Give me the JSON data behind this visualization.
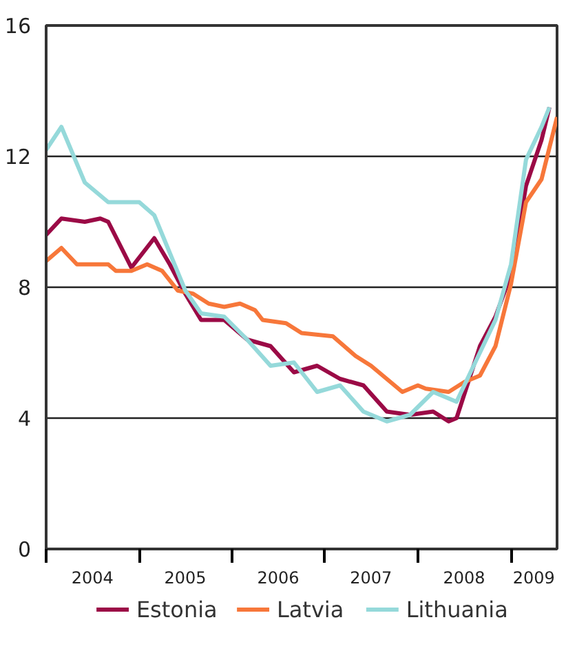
{
  "chart_data": {
    "type": "line",
    "legend": "bottom",
    "grid": "y",
    "line_style": "solid",
    "marker": "none",
    "xlim": [
      "2004-01",
      "2009-07"
    ],
    "xticks": [
      {
        "value": "2004-01",
        "label": null
      },
      {
        "value": "2005-01",
        "label": null
      },
      {
        "value": "2006-01",
        "label": null
      },
      {
        "value": "2007-01",
        "label": null
      },
      {
        "value": "2008-01",
        "label": null
      },
      {
        "value": "2009-01",
        "label": null
      },
      {
        "value": "2004-07",
        "label": "2004"
      },
      {
        "value": "2005-07",
        "label": "2005"
      },
      {
        "value": "2006-07",
        "label": "2006"
      },
      {
        "value": "2007-07",
        "label": "2007"
      },
      {
        "value": "2008-07",
        "label": "2008"
      },
      {
        "value": "2009-04",
        "label": "2009"
      }
    ],
    "ylim": [
      0,
      16
    ],
    "yticks": [
      0,
      4,
      8,
      12,
      16
    ],
    "series": [
      {
        "name": "Estonia",
        "color": "#9b0a46",
        "x": [
          "2004-01",
          "2004-03",
          "2004-06",
          "2004-08",
          "2004-09",
          "2004-12",
          "2005-03",
          "2005-05",
          "2005-07",
          "2005-09",
          "2005-12",
          "2006-03",
          "2006-06",
          "2006-09",
          "2006-12",
          "2007-03",
          "2007-06",
          "2007-09",
          "2007-12",
          "2008-03",
          "2008-05",
          "2008-06",
          "2008-09",
          "2008-11",
          "2009-01",
          "2009-03",
          "2009-05",
          "2009-06"
        ],
        "values": [
          9.6,
          10.1,
          10.0,
          10.1,
          10.0,
          8.6,
          9.5,
          8.7,
          7.8,
          7.0,
          7.0,
          6.4,
          6.2,
          5.4,
          5.6,
          5.2,
          5.0,
          4.2,
          4.1,
          4.2,
          3.9,
          4.0,
          6.2,
          7.1,
          8.4,
          11.1,
          12.5,
          13.5
        ]
      },
      {
        "name": "Latvia",
        "color": "#f7773a",
        "x": [
          "2004-01",
          "2004-03",
          "2004-05",
          "2004-09",
          "2004-10",
          "2004-12",
          "2005-02",
          "2005-04",
          "2005-06",
          "2005-08",
          "2005-10",
          "2005-12",
          "2006-02",
          "2006-04",
          "2006-05",
          "2006-08",
          "2006-10",
          "2007-02",
          "2007-05",
          "2007-07",
          "2007-11",
          "2008-01",
          "2008-02",
          "2008-05",
          "2008-07",
          "2008-09",
          "2008-11",
          "2009-01",
          "2009-03",
          "2009-05",
          "2009-07"
        ],
        "values": [
          8.8,
          9.2,
          8.7,
          8.7,
          8.5,
          8.5,
          8.7,
          8.5,
          7.9,
          7.8,
          7.5,
          7.4,
          7.5,
          7.3,
          7.0,
          6.9,
          6.6,
          6.5,
          5.9,
          5.6,
          4.8,
          5.0,
          4.9,
          4.8,
          5.1,
          5.3,
          6.2,
          8.1,
          10.6,
          11.3,
          13.2
        ]
      },
      {
        "name": "Lithuania",
        "color": "#95d9da",
        "x": [
          "2004-01",
          "2004-03",
          "2004-06",
          "2004-09",
          "2005-01",
          "2005-03",
          "2005-07",
          "2005-09",
          "2005-12",
          "2006-03",
          "2006-06",
          "2006-09",
          "2006-12",
          "2007-03",
          "2007-06",
          "2007-09",
          "2007-12",
          "2008-03",
          "2008-06",
          "2008-08",
          "2008-11",
          "2009-01",
          "2009-03",
          "2009-05",
          "2009-06"
        ],
        "values": [
          12.2,
          12.9,
          11.2,
          10.6,
          10.6,
          10.2,
          7.9,
          7.2,
          7.1,
          6.4,
          5.6,
          5.7,
          4.8,
          5.0,
          4.2,
          3.9,
          4.1,
          4.8,
          4.5,
          5.5,
          7.0,
          8.7,
          11.9,
          12.9,
          13.5
        ]
      }
    ]
  }
}
